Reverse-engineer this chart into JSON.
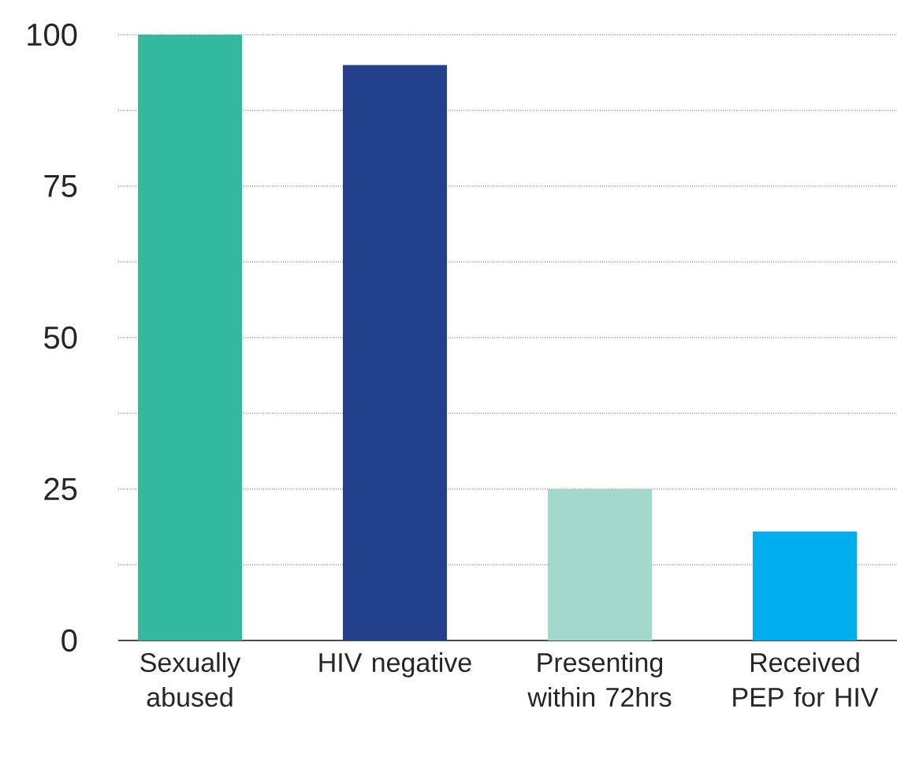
{
  "chart_data": {
    "type": "bar",
    "categories": [
      "Sexually abused",
      "HIV negative",
      "Presenting within 72hrs",
      "Received PEP for HIV"
    ],
    "values": [
      100,
      95,
      25,
      18
    ],
    "colors": [
      "#34b99e",
      "#243f8c",
      "#a3d9cc",
      "#00aeef"
    ],
    "ylim": [
      0,
      100
    ],
    "yticks": [
      0,
      {
        "value": 12.5,
        "label": null
      },
      25,
      {
        "value": 37.5,
        "label": null
      },
      50,
      {
        "value": 62.5,
        "label": null
      },
      75,
      {
        "value": 87.5,
        "label": null
      },
      100
    ],
    "grid": true
  }
}
